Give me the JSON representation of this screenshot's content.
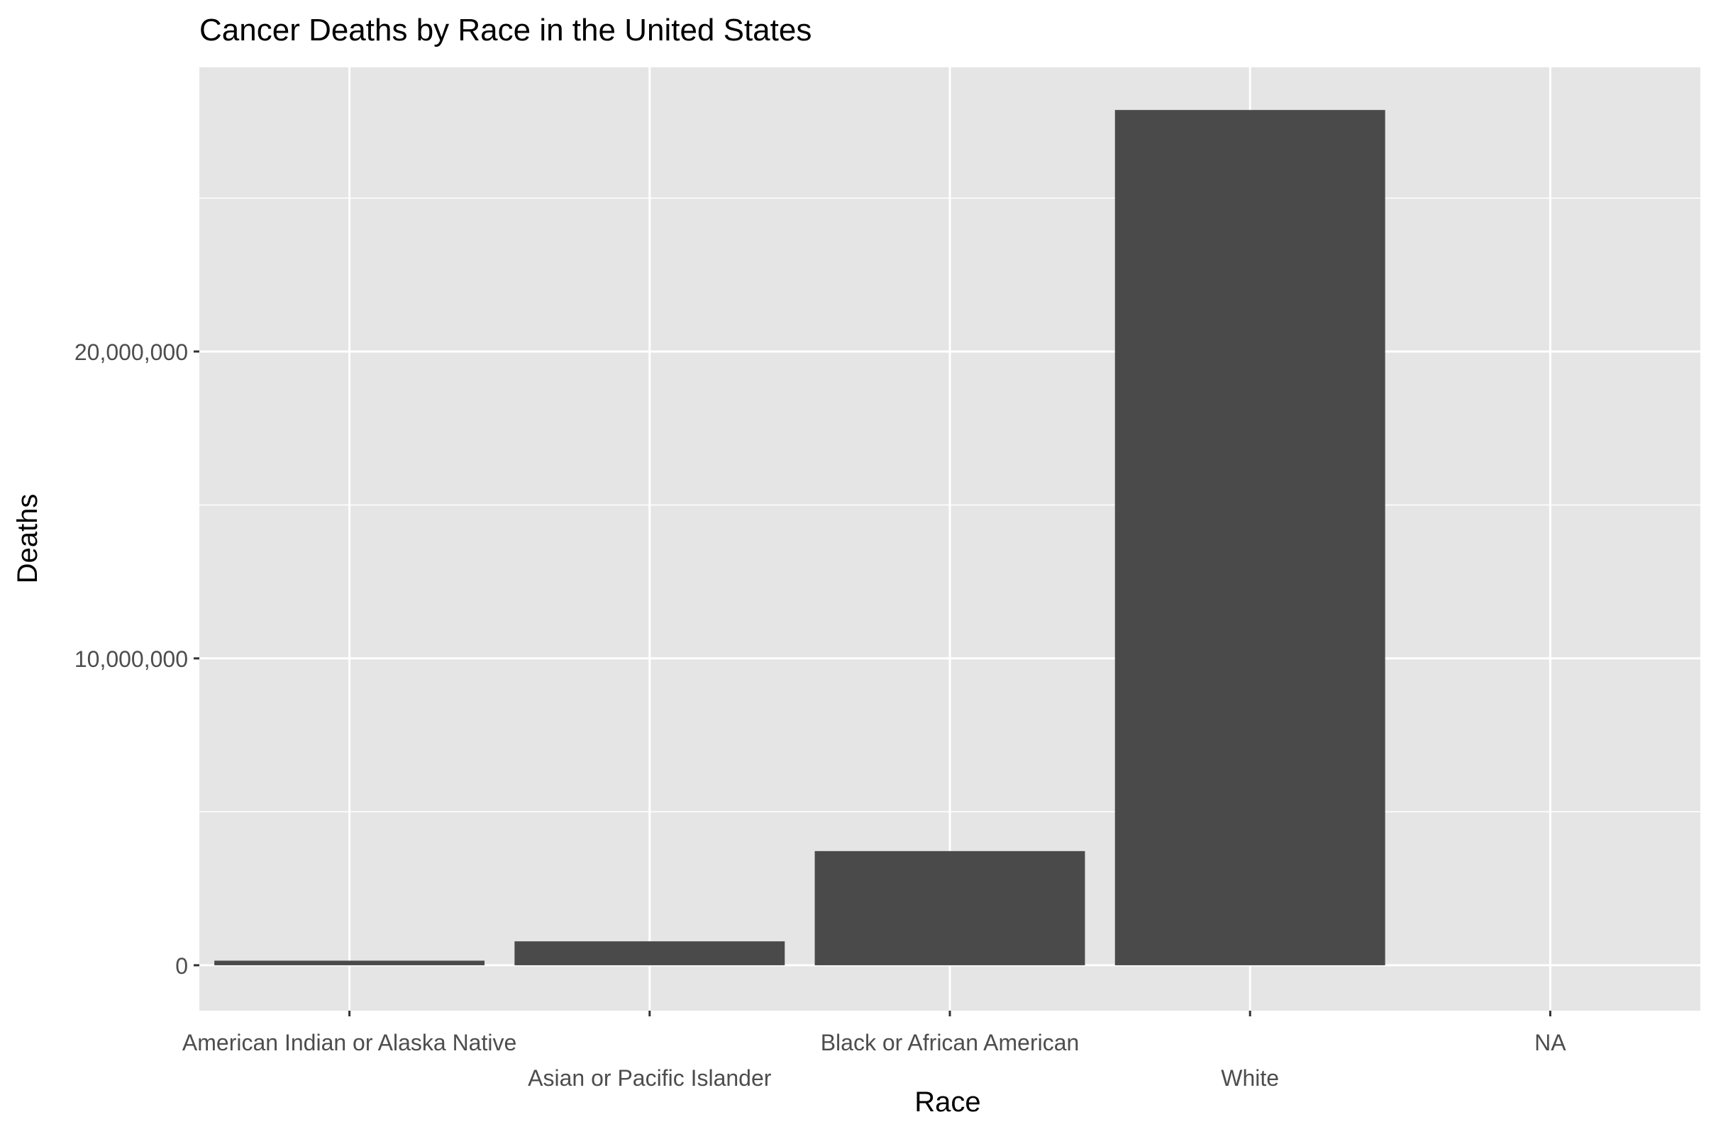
{
  "chart_data": {
    "type": "bar",
    "title": "Cancer Deaths by Race in the United States",
    "xlabel": "Race",
    "ylabel": "Deaths",
    "categories": [
      "American Indian or Alaska Native",
      "Asian or Pacific Islander",
      "Black or African American",
      "White",
      "NA"
    ],
    "values": [
      150000,
      780000,
      3720000,
      27870000,
      0
    ],
    "yticks": [
      0,
      10000000,
      20000000
    ],
    "ytick_labels": [
      "0",
      "10,000,000",
      "20,000,000"
    ],
    "ylim": [
      -1480000,
      29260000
    ],
    "grid": true,
    "bar_color": "#4a4a4a",
    "panel_color": "#e5e5e5",
    "grid_color": "#ffffff",
    "text_color": "#4d4d4d"
  }
}
